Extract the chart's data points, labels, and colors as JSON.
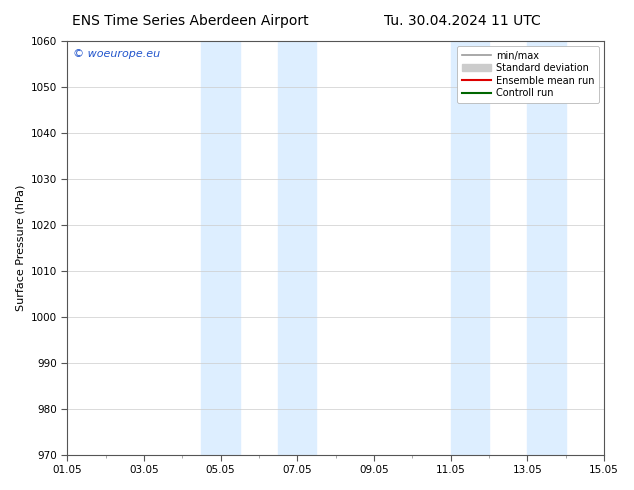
{
  "title_left": "ENS Time Series Aberdeen Airport",
  "title_right": "Tu. 30.04.2024 11 UTC",
  "ylabel": "Surface Pressure (hPa)",
  "ylim": [
    970,
    1060
  ],
  "yticks": [
    970,
    980,
    990,
    1000,
    1010,
    1020,
    1030,
    1040,
    1050,
    1060
  ],
  "xlim_start": 0,
  "xlim_end": 14,
  "xtick_positions": [
    0,
    2,
    4,
    6,
    8,
    10,
    12,
    14
  ],
  "xtick_labels": [
    "01.05",
    "03.05",
    "05.05",
    "07.05",
    "09.05",
    "11.05",
    "13.05",
    "15.05"
  ],
  "shaded_bands": [
    {
      "xmin": 3.5,
      "xmax": 4.5
    },
    {
      "xmin": 5.5,
      "xmax": 6.5
    },
    {
      "xmin": 10.0,
      "xmax": 11.0
    },
    {
      "xmin": 12.0,
      "xmax": 13.0
    }
  ],
  "shade_color": "#ddeeff",
  "watermark": "© woeurope.eu",
  "watermark_color": "#2255cc",
  "legend_items": [
    {
      "label": "min/max",
      "color": "#999999",
      "lw": 1.2,
      "style": "-",
      "type": "line"
    },
    {
      "label": "Standard deviation",
      "color": "#cccccc",
      "lw": 8,
      "style": "-",
      "type": "patch"
    },
    {
      "label": "Ensemble mean run",
      "color": "#dd0000",
      "lw": 1.5,
      "style": "-",
      "type": "line"
    },
    {
      "label": "Controll run",
      "color": "#006600",
      "lw": 1.5,
      "style": "-",
      "type": "line"
    }
  ],
  "bg_color": "#ffffff",
  "plot_bg_color": "#ffffff",
  "grid_color": "#cccccc",
  "title_fontsize": 10,
  "ylabel_fontsize": 8,
  "tick_fontsize": 7.5,
  "watermark_fontsize": 8,
  "legend_fontsize": 7
}
